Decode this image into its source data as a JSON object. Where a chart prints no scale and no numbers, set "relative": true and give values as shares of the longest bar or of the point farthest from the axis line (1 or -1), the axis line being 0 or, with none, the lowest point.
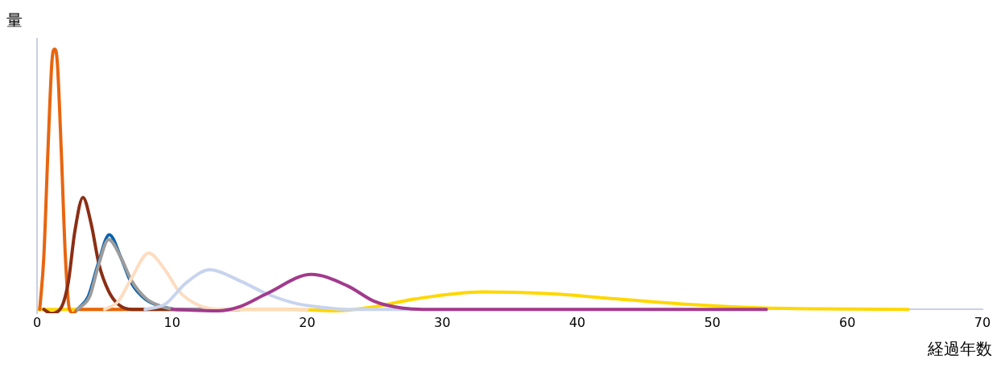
{
  "chart_data": {
    "type": "line",
    "relative": true,
    "xlabel": "経過年数",
    "ylabel": "量",
    "xlim": [
      0,
      70
    ],
    "xticks": [
      0,
      10,
      20,
      30,
      40,
      50,
      60,
      70
    ],
    "grid": false,
    "legend": false,
    "marker": "none",
    "series": [
      {
        "color": "#a23a8c",
        "x": [
          10,
          13.4,
          15,
          17,
          20.3,
          23,
          25,
          27,
          29,
          54
        ],
        "values": [
          0,
          -0.006,
          0.01,
          0.06,
          0.134,
          0.09,
          0.03,
          0.005,
          0,
          0
        ]
      },
      {
        "color": "#c8d4ee",
        "x": [
          8,
          9.5,
          11,
          12.8,
          15,
          17,
          19,
          21,
          23,
          28
        ],
        "values": [
          0,
          0.02,
          0.1,
          0.152,
          0.11,
          0.06,
          0.025,
          0.008,
          0,
          0
        ]
      },
      {
        "color": "#fddcc0",
        "x": [
          5,
          6,
          7,
          8.26,
          9.5,
          10.5,
          12,
          14,
          20
        ],
        "values": [
          0,
          0.03,
          0.12,
          0.216,
          0.15,
          0.07,
          0.015,
          0,
          0
        ]
      },
      {
        "color": "#9c9c9c",
        "x": [
          3,
          3.9,
          4.5,
          5.3,
          6.2,
          7,
          8,
          9,
          10.5,
          15
        ],
        "values": [
          0,
          0.05,
          0.16,
          0.268,
          0.2,
          0.11,
          0.045,
          0.015,
          0,
          0
        ]
      },
      {
        "color": "#0a63ad",
        "x": [
          3,
          3.8,
          4.5,
          5.35,
          6.2,
          7,
          8,
          9,
          10.5,
          15
        ],
        "values": [
          0,
          0.05,
          0.17,
          0.287,
          0.2,
          0.1,
          0.04,
          0.015,
          0,
          0
        ]
      },
      {
        "color": "#8b2e14",
        "x": [
          0.5,
          1,
          1.7,
          2.3,
          2.8,
          3.4,
          4,
          4.6,
          5.3,
          6,
          7,
          10
        ],
        "values": [
          0,
          -0.015,
          0,
          0.1,
          0.3,
          0.43,
          0.33,
          0.17,
          0.07,
          0.02,
          0,
          0
        ]
      },
      {
        "color": "#e8650f",
        "x": [
          0.2,
          0.5,
          0.8,
          1.1,
          1.3,
          1.5,
          1.8,
          2.1,
          2.4,
          2.7,
          3,
          8
        ],
        "values": [
          0,
          0.2,
          0.6,
          0.95,
          1,
          0.95,
          0.6,
          0.2,
          0,
          -0.015,
          0,
          0
        ]
      },
      {
        "color": "#ffd700",
        "x": [
          0,
          19,
          22,
          25,
          28,
          33,
          38,
          43,
          48,
          53,
          58,
          64.5
        ],
        "values": [
          0,
          0,
          -0.006,
          0.01,
          0.04,
          0.067,
          0.06,
          0.04,
          0.02,
          0.007,
          0.002,
          0
        ]
      }
    ]
  }
}
